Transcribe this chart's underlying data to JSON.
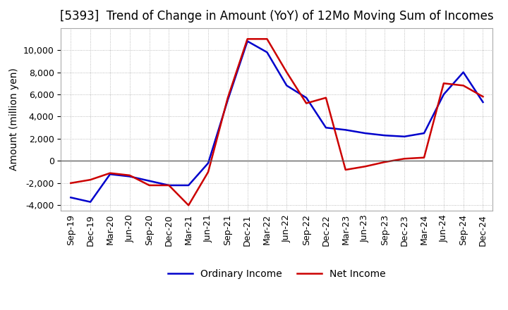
{
  "title": "[5393]  Trend of Change in Amount (YoY) of 12Mo Moving Sum of Incomes",
  "ylabel": "Amount (million yen)",
  "x_labels": [
    "Sep-19",
    "Dec-19",
    "Mar-20",
    "Jun-20",
    "Sep-20",
    "Dec-20",
    "Mar-21",
    "Jun-21",
    "Sep-21",
    "Dec-21",
    "Mar-22",
    "Jun-22",
    "Sep-22",
    "Dec-22",
    "Mar-23",
    "Jun-23",
    "Sep-23",
    "Dec-23",
    "Mar-24",
    "Jun-24",
    "Sep-24",
    "Dec-24"
  ],
  "ordinary_income": [
    -3300,
    -3700,
    -1200,
    -1400,
    -1800,
    -2200,
    -2200,
    -200,
    5500,
    10800,
    9800,
    6800,
    5700,
    3000,
    2800,
    2500,
    2300,
    2200,
    2500,
    6000,
    8000,
    5300
  ],
  "net_income": [
    -2000,
    -1700,
    -1100,
    -1300,
    -2200,
    -2200,
    -4000,
    -1000,
    5700,
    11000,
    11000,
    8000,
    5200,
    5700,
    -800,
    -500,
    -100,
    200,
    300,
    7000,
    6800,
    5800
  ],
  "ordinary_income_color": "#0000cc",
  "net_income_color": "#cc0000",
  "ylim": [
    -4500,
    12000
  ],
  "yticks": [
    -4000,
    -2000,
    0,
    2000,
    4000,
    6000,
    8000,
    10000
  ],
  "grid_color": "#aaaaaa",
  "background_color": "#ffffff",
  "legend_labels": [
    "Ordinary Income",
    "Net Income"
  ],
  "title_fontsize": 12,
  "ylabel_fontsize": 10,
  "tick_fontsize": 9,
  "legend_fontsize": 10
}
